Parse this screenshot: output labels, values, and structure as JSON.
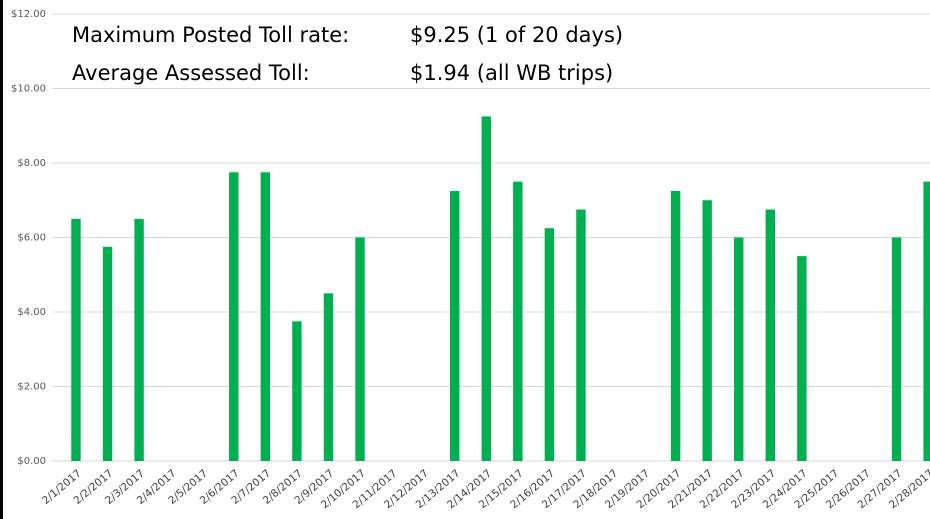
{
  "chart_data": {
    "type": "bar",
    "annotations": [
      {
        "label": "Maximum Posted Toll rate:",
        "text": "$9.25 (1 of 20 days)"
      },
      {
        "label": "Average Assessed Toll:",
        "text": "$1.94 (all WB trips)"
      }
    ],
    "categories": [
      "2/1/2017",
      "2/2/2017",
      "2/3/2017",
      "2/4/2017",
      "2/5/2017",
      "2/6/2017",
      "2/7/2017",
      "2/8/2017",
      "2/9/2017",
      "2/10/2017",
      "2/11/2017",
      "2/12/2017",
      "2/13/2017",
      "2/14/2017",
      "2/15/2017",
      "2/16/2017",
      "2/17/2017",
      "2/18/2017",
      "2/19/2017",
      "2/20/2017",
      "2/21/2017",
      "2/22/2017",
      "2/23/2017",
      "2/24/2017",
      "2/25/2017",
      "2/26/2017",
      "2/27/2017",
      "2/28/2017"
    ],
    "values": [
      6.5,
      5.75,
      6.5,
      null,
      null,
      7.75,
      7.75,
      3.75,
      4.5,
      6.0,
      null,
      null,
      7.25,
      9.25,
      7.5,
      6.25,
      6.75,
      null,
      null,
      7.25,
      7.0,
      6.0,
      6.75,
      5.5,
      null,
      null,
      6.0,
      7.5
    ],
    "color": "#00b050",
    "ylim": [
      0,
      12
    ],
    "yticks": [
      {
        "value": 0,
        "label": "$0.00"
      },
      {
        "value": 2,
        "label": "$2.00"
      },
      {
        "value": 4,
        "label": "$4.00"
      },
      {
        "value": 6,
        "label": "$6.00"
      },
      {
        "value": 8,
        "label": "$8.00"
      },
      {
        "value": 10,
        "label": "$10.00"
      },
      {
        "value": 12,
        "label": "$12.00"
      }
    ],
    "grid": true
  }
}
